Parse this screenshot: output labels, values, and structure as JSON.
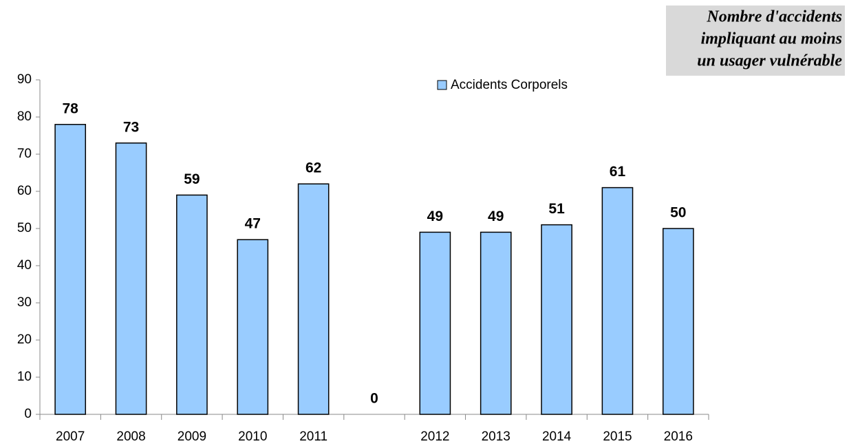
{
  "chart_data": {
    "type": "bar",
    "title": [
      "Nombre d'accidents",
      "impliquant au moins",
      "un usager vulnérable"
    ],
    "categories": [
      "2007",
      "2008",
      "2009",
      "2010",
      "2011",
      null,
      "2012",
      "2013",
      "2014",
      "2015",
      "2016"
    ],
    "series": [
      {
        "name": "Accidents Corporels",
        "color": "#99ccff",
        "values": [
          78,
          73,
          59,
          47,
          62,
          0,
          49,
          49,
          51,
          61,
          50
        ]
      }
    ],
    "ylim": [
      0,
      90
    ],
    "yticks": [
      0,
      10,
      20,
      30,
      40,
      50,
      60,
      70,
      80,
      90
    ],
    "grid": false,
    "legend": "top"
  }
}
